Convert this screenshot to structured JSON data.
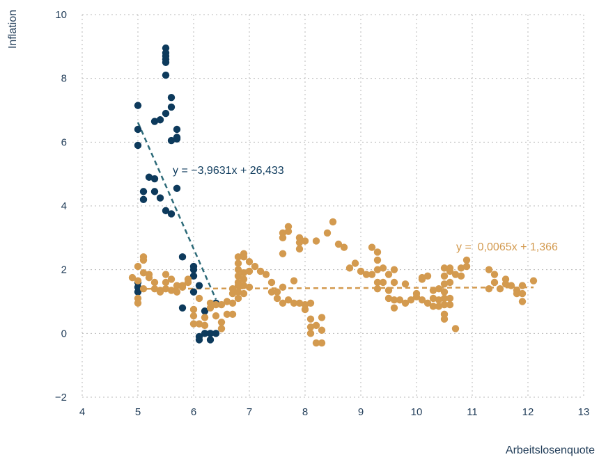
{
  "chart_data": {
    "type": "scatter",
    "title": "",
    "xlabel": "Arbeitslosenquote",
    "ylabel": "Inflation",
    "xlim": [
      4,
      13
    ],
    "ylim": [
      -2,
      10
    ],
    "xticks": [
      "4",
      "5",
      "6",
      "7",
      "8",
      "9",
      "10",
      "11",
      "12",
      "13"
    ],
    "yticks": [
      "−2",
      "0",
      "2",
      "4",
      "6",
      "8",
      "10"
    ],
    "grid": true,
    "colors": {
      "navy": "#0d3a5c",
      "gold": "#d39a4f",
      "trend_navy": "#2c6a78",
      "trend_gold": "#d39a4f"
    },
    "series": [
      {
        "color": "navy",
        "points": [
          [
            5.0,
            7.15
          ],
          [
            5.0,
            6.4
          ],
          [
            5.0,
            5.9
          ],
          [
            5.0,
            1.6
          ],
          [
            5.0,
            1.45
          ],
          [
            5.0,
            1.3
          ],
          [
            5.1,
            4.45
          ],
          [
            5.1,
            4.2
          ],
          [
            5.2,
            4.9
          ],
          [
            5.3,
            4.85
          ],
          [
            5.3,
            4.45
          ],
          [
            5.3,
            6.65
          ],
          [
            5.4,
            6.7
          ],
          [
            5.4,
            4.25
          ],
          [
            5.5,
            8.95
          ],
          [
            5.5,
            8.8
          ],
          [
            5.5,
            8.7
          ],
          [
            5.5,
            8.6
          ],
          [
            5.5,
            8.5
          ],
          [
            5.5,
            8.1
          ],
          [
            5.5,
            6.9
          ],
          [
            5.5,
            3.85
          ],
          [
            5.6,
            7.4
          ],
          [
            5.6,
            7.1
          ],
          [
            5.6,
            6.05
          ],
          [
            5.6,
            3.75
          ],
          [
            5.7,
            6.4
          ],
          [
            5.7,
            6.15
          ],
          [
            5.7,
            6.1
          ],
          [
            5.7,
            4.55
          ],
          [
            5.8,
            2.4
          ],
          [
            5.8,
            0.8
          ],
          [
            6.0,
            2.1
          ],
          [
            6.0,
            2.0
          ],
          [
            6.0,
            1.8
          ],
          [
            6.0,
            1.3
          ],
          [
            6.1,
            1.5
          ],
          [
            6.1,
            -0.1
          ],
          [
            6.1,
            -0.2
          ],
          [
            6.2,
            0.7
          ],
          [
            6.2,
            0.0
          ],
          [
            6.3,
            0.0
          ],
          [
            6.3,
            -0.2
          ],
          [
            6.4,
            0.0
          ],
          [
            6.4,
            0.95
          ]
        ],
        "trend": {
          "equation": "y = −3,9631x + 26,433",
          "x_start": 5.0,
          "x_end": 6.4,
          "slope": -3.9631,
          "intercept": 26.433
        }
      },
      {
        "color": "gold",
        "points": [
          [
            4.9,
            1.75
          ],
          [
            5.0,
            2.1
          ],
          [
            5.0,
            1.65
          ],
          [
            5.0,
            1.1
          ],
          [
            5.0,
            0.95
          ],
          [
            5.1,
            2.4
          ],
          [
            5.1,
            2.3
          ],
          [
            5.1,
            1.9
          ],
          [
            5.1,
            1.4
          ],
          [
            5.2,
            1.85
          ],
          [
            5.2,
            1.75
          ],
          [
            5.3,
            1.6
          ],
          [
            5.3,
            1.4
          ],
          [
            5.4,
            1.35
          ],
          [
            5.4,
            1.3
          ],
          [
            5.5,
            1.85
          ],
          [
            5.5,
            1.6
          ],
          [
            5.5,
            1.4
          ],
          [
            5.6,
            1.7
          ],
          [
            5.6,
            1.35
          ],
          [
            5.7,
            1.5
          ],
          [
            5.7,
            1.3
          ],
          [
            5.8,
            1.45
          ],
          [
            5.8,
            1.5
          ],
          [
            5.9,
            1.7
          ],
          [
            5.9,
            1.6
          ],
          [
            6.0,
            0.75
          ],
          [
            6.0,
            0.55
          ],
          [
            6.0,
            0.3
          ],
          [
            6.1,
            1.1
          ],
          [
            6.1,
            0.3
          ],
          [
            6.2,
            0.5
          ],
          [
            6.2,
            0.25
          ],
          [
            6.3,
            0.95
          ],
          [
            6.3,
            0.8
          ],
          [
            6.4,
            0.9
          ],
          [
            6.4,
            0.55
          ],
          [
            6.5,
            0.9
          ],
          [
            6.5,
            0.35
          ],
          [
            6.5,
            0.15
          ],
          [
            6.6,
            1.0
          ],
          [
            6.6,
            0.6
          ],
          [
            6.7,
            1.4
          ],
          [
            6.7,
            1.25
          ],
          [
            6.7,
            0.95
          ],
          [
            6.7,
            0.6
          ],
          [
            6.8,
            2.4
          ],
          [
            6.8,
            2.2
          ],
          [
            6.8,
            2.0
          ],
          [
            6.8,
            1.8
          ],
          [
            6.8,
            1.6
          ],
          [
            6.8,
            1.5
          ],
          [
            6.8,
            1.3
          ],
          [
            6.8,
            1.1
          ],
          [
            6.9,
            2.5
          ],
          [
            6.9,
            2.4
          ],
          [
            6.9,
            1.9
          ],
          [
            6.9,
            1.7
          ],
          [
            6.9,
            1.5
          ],
          [
            6.9,
            1.25
          ],
          [
            7.0,
            2.25
          ],
          [
            7.0,
            1.95
          ],
          [
            7.0,
            1.45
          ],
          [
            7.1,
            2.1
          ],
          [
            7.2,
            1.95
          ],
          [
            7.3,
            1.85
          ],
          [
            7.4,
            1.6
          ],
          [
            7.4,
            1.3
          ],
          [
            7.5,
            1.3
          ],
          [
            7.5,
            1.1
          ],
          [
            7.6,
            1.45
          ],
          [
            7.6,
            0.95
          ],
          [
            7.6,
            2.5
          ],
          [
            7.6,
            3.0
          ],
          [
            7.6,
            3.15
          ],
          [
            7.7,
            3.35
          ],
          [
            7.7,
            3.2
          ],
          [
            7.7,
            1.05
          ],
          [
            7.8,
            1.65
          ],
          [
            7.8,
            0.95
          ],
          [
            7.9,
            3.0
          ],
          [
            7.9,
            2.85
          ],
          [
            7.9,
            2.65
          ],
          [
            7.9,
            0.95
          ],
          [
            8.0,
            2.9
          ],
          [
            8.0,
            0.9
          ],
          [
            8.0,
            0.75
          ],
          [
            8.1,
            0.95
          ],
          [
            8.1,
            0.45
          ],
          [
            8.1,
            0.2
          ],
          [
            8.1,
            0.0
          ],
          [
            8.2,
            2.9
          ],
          [
            8.2,
            0.25
          ],
          [
            8.2,
            -0.3
          ],
          [
            8.3,
            0.5
          ],
          [
            8.3,
            0.1
          ],
          [
            8.3,
            -0.3
          ],
          [
            8.4,
            3.15
          ],
          [
            8.5,
            3.5
          ],
          [
            8.6,
            2.8
          ],
          [
            8.7,
            2.7
          ],
          [
            8.8,
            2.05
          ],
          [
            8.9,
            2.2
          ],
          [
            9.0,
            1.95
          ],
          [
            9.1,
            1.85
          ],
          [
            9.2,
            2.7
          ],
          [
            9.2,
            1.85
          ],
          [
            9.3,
            2.55
          ],
          [
            9.3,
            2.3
          ],
          [
            9.3,
            2.0
          ],
          [
            9.3,
            1.6
          ],
          [
            9.3,
            1.4
          ],
          [
            9.4,
            2.05
          ],
          [
            9.4,
            1.6
          ],
          [
            9.5,
            1.85
          ],
          [
            9.5,
            1.35
          ],
          [
            9.5,
            1.1
          ],
          [
            9.6,
            2.0
          ],
          [
            9.6,
            1.6
          ],
          [
            9.6,
            1.05
          ],
          [
            9.6,
            0.8
          ],
          [
            9.7,
            1.05
          ],
          [
            9.8,
            1.55
          ],
          [
            9.8,
            0.95
          ],
          [
            9.9,
            1.05
          ],
          [
            10.0,
            1.25
          ],
          [
            10.0,
            1.15
          ],
          [
            10.1,
            1.05
          ],
          [
            10.1,
            1.7
          ],
          [
            10.1,
            1.75
          ],
          [
            10.2,
            1.8
          ],
          [
            10.2,
            0.95
          ],
          [
            10.3,
            1.35
          ],
          [
            10.3,
            1.1
          ],
          [
            10.3,
            0.85
          ],
          [
            10.4,
            1.4
          ],
          [
            10.4,
            1.05
          ],
          [
            10.4,
            0.85
          ],
          [
            10.5,
            2.05
          ],
          [
            10.5,
            1.8
          ],
          [
            10.5,
            1.55
          ],
          [
            10.5,
            1.3
          ],
          [
            10.5,
            1.1
          ],
          [
            10.5,
            0.9
          ],
          [
            10.5,
            0.6
          ],
          [
            10.5,
            0.45
          ],
          [
            10.6,
            2.05
          ],
          [
            10.6,
            1.95
          ],
          [
            10.6,
            1.6
          ],
          [
            10.6,
            1.1
          ],
          [
            10.6,
            0.9
          ],
          [
            10.7,
            1.85
          ],
          [
            10.7,
            0.15
          ],
          [
            10.8,
            2.05
          ],
          [
            10.8,
            1.8
          ],
          [
            10.9,
            2.3
          ],
          [
            10.9,
            2.1
          ],
          [
            11.3,
            2.0
          ],
          [
            11.3,
            1.4
          ],
          [
            11.4,
            1.85
          ],
          [
            11.4,
            1.6
          ],
          [
            11.5,
            1.4
          ],
          [
            11.6,
            1.7
          ],
          [
            11.6,
            1.55
          ],
          [
            11.7,
            1.5
          ],
          [
            11.8,
            1.35
          ],
          [
            11.8,
            1.25
          ],
          [
            11.9,
            1.5
          ],
          [
            11.9,
            1.25
          ],
          [
            11.9,
            1.0
          ],
          [
            12.1,
            1.65
          ]
        ],
        "trend": {
          "equation": "y =  0,0065x + 1,366",
          "x_start": 5.0,
          "x_end": 12.1,
          "slope": 0.0065,
          "intercept": 1.366
        }
      }
    ]
  }
}
